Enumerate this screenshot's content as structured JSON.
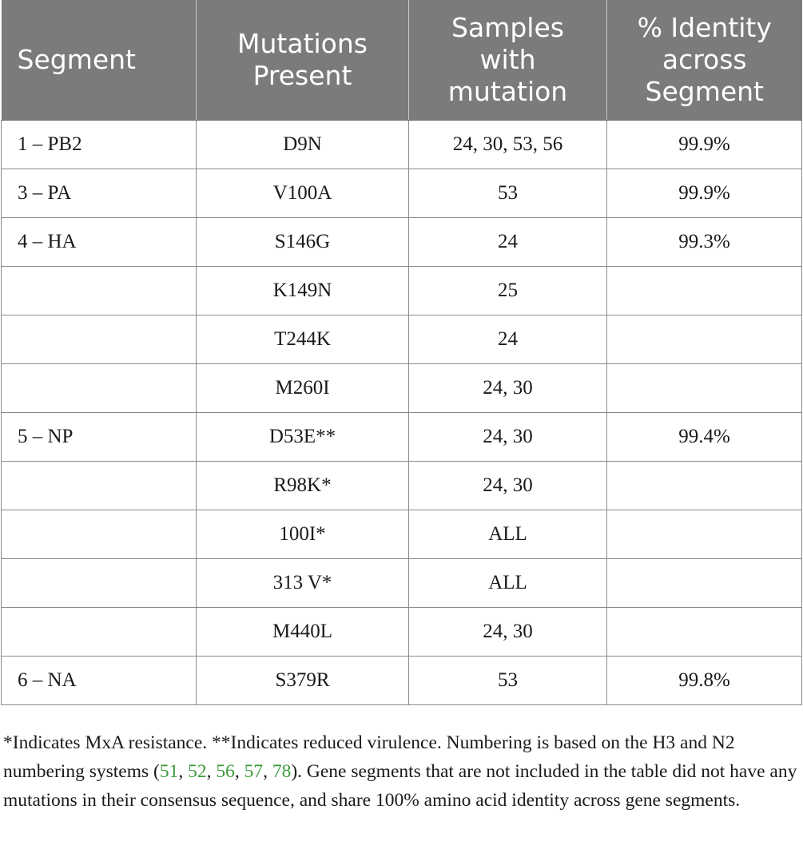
{
  "table": {
    "headers": [
      {
        "line1": "Segment",
        "line2": "",
        "line3": ""
      },
      {
        "line1": "Mutations",
        "line2": "Present",
        "line3": ""
      },
      {
        "line1": "Samples",
        "line2": "with",
        "line3": "mutation"
      },
      {
        "line1": "% Identity",
        "line2": "across",
        "line3": "Segment"
      }
    ],
    "rows": [
      {
        "segment": "1 – PB2",
        "mutation": "D9N",
        "samples": "24, 30, 53, 56",
        "identity": "99.9%"
      },
      {
        "segment": "3 – PA",
        "mutation": "V100A",
        "samples": "53",
        "identity": "99.9%"
      },
      {
        "segment": "4 – HA",
        "mutation": "S146G",
        "samples": "24",
        "identity": "99.3%"
      },
      {
        "segment": "",
        "mutation": "K149N",
        "samples": "25",
        "identity": ""
      },
      {
        "segment": "",
        "mutation": "T244K",
        "samples": "24",
        "identity": ""
      },
      {
        "segment": "",
        "mutation": "M260I",
        "samples": "24, 30",
        "identity": ""
      },
      {
        "segment": "5 – NP",
        "mutation": "D53E**",
        "samples": "24, 30",
        "identity": "99.4%"
      },
      {
        "segment": "",
        "mutation": "R98K*",
        "samples": "24, 30",
        "identity": ""
      },
      {
        "segment": "",
        "mutation": "100I*",
        "samples": "ALL",
        "identity": ""
      },
      {
        "segment": "",
        "mutation": "313 V*",
        "samples": "ALL",
        "identity": ""
      },
      {
        "segment": "",
        "mutation": "M440L",
        "samples": "24, 30",
        "identity": ""
      },
      {
        "segment": "6 – NA",
        "mutation": "S379R",
        "samples": "53",
        "identity": "99.8%"
      }
    ]
  },
  "footnote": {
    "text_before": "*Indicates MxA resistance. **Indicates reduced virulence. Numbering is based on the H3 and N2 numbering systems (",
    "refs": [
      "51",
      "52",
      "56",
      "57",
      "78"
    ],
    "ref_sep": ", ",
    "text_after": "). Gene segments that are not included in the table did not have any mutations in their consensus sequence, and share 100% amino acid identity across gene segments."
  },
  "colors": {
    "header_bg": "#7b7b7b",
    "header_text": "#ffffff",
    "ref_link": "#3a9a3a"
  }
}
